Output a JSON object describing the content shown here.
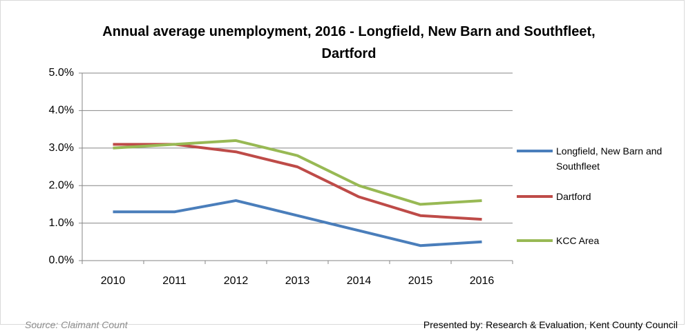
{
  "chart_data": {
    "type": "line",
    "title": "Annual average unemployment, 2016 - Longfield, New Barn and Southfleet, Dartford",
    "categories": [
      "2010",
      "2011",
      "2012",
      "2013",
      "2014",
      "2015",
      "2016"
    ],
    "series": [
      {
        "name": "Longfield, New Barn and Southfleet",
        "color": "#4a7ebb",
        "values": [
          1.3,
          1.3,
          1.6,
          1.2,
          0.8,
          0.4,
          0.5
        ]
      },
      {
        "name": "Dartford",
        "color": "#be4b48",
        "values": [
          3.1,
          3.1,
          2.9,
          2.5,
          1.7,
          1.2,
          1.1
        ]
      },
      {
        "name": "KCC Area",
        "color": "#98b954",
        "values": [
          3.0,
          3.1,
          3.2,
          2.8,
          2.0,
          1.5,
          1.6
        ]
      }
    ],
    "ylim": [
      0,
      5
    ],
    "yticks": [
      {
        "value": 0,
        "label": "0.0%"
      },
      {
        "value": 1,
        "label": "1.0%"
      },
      {
        "value": 2,
        "label": "2.0%"
      },
      {
        "value": 3,
        "label": "3.0%"
      },
      {
        "value": 4,
        "label": "4.0%"
      },
      {
        "value": 5,
        "label": "5.0%"
      }
    ],
    "grid": true,
    "legend": "right",
    "source": "Source: Claimant Count",
    "credit": "Presented by: Research & Evaluation, Kent County Council"
  }
}
